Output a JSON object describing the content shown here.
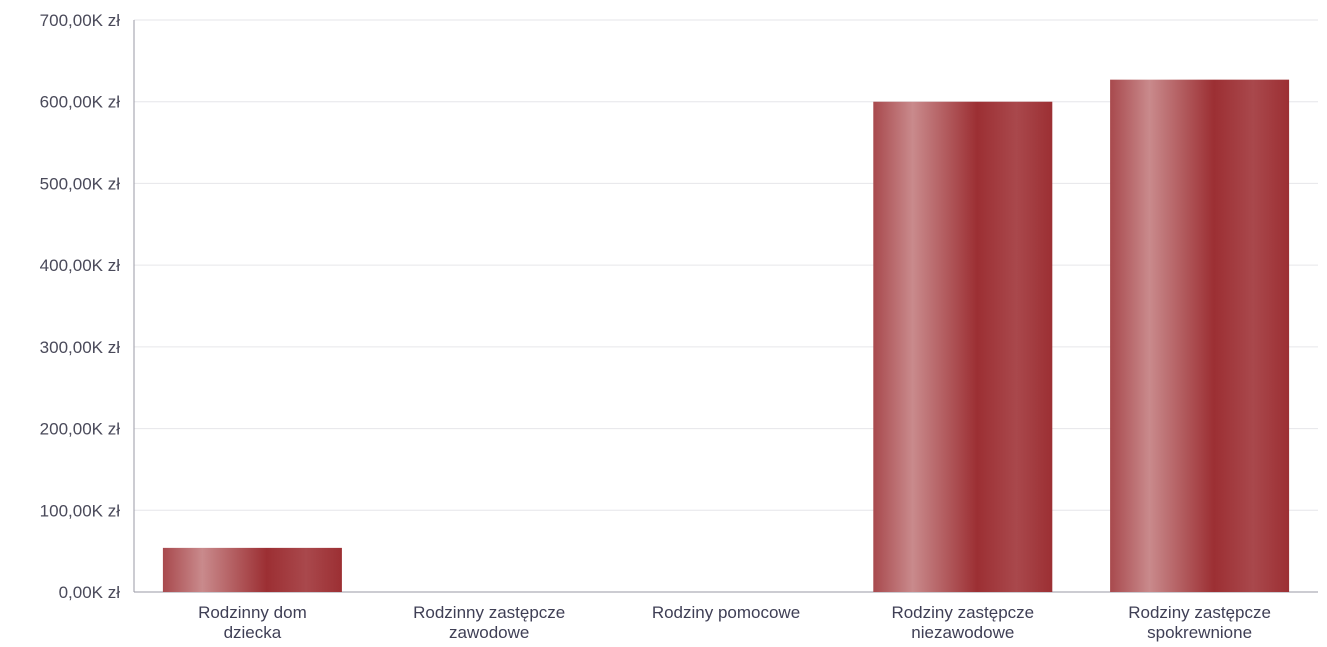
{
  "chart_data": {
    "type": "bar",
    "categories": [
      [
        "Rodzinny dom",
        "dziecka"
      ],
      [
        "Rodzinny zastępcze",
        "zawodowe"
      ],
      [
        "Rodziny pomocowe"
      ],
      [
        "Rodziny zastępcze",
        "niezawodowe"
      ],
      [
        "Rodziny zastępcze",
        "spokrewnione"
      ]
    ],
    "values": [
      54,
      0,
      0,
      600,
      627
    ],
    "value_unit": "K zł",
    "y_ticks": [
      "0,00K zł",
      "100,00K zł",
      "200,00K zł",
      "300,00K zł",
      "400,00K zł",
      "500,00K zł",
      "600,00K zł",
      "700,00K zł"
    ],
    "ylim": [
      0,
      700
    ],
    "grid": true,
    "colors": {
      "bar_dark": "#9c2f33",
      "bar_light": "#c98a8c",
      "grid": "#e6e6ea",
      "axis": "#9a9aa6"
    }
  }
}
